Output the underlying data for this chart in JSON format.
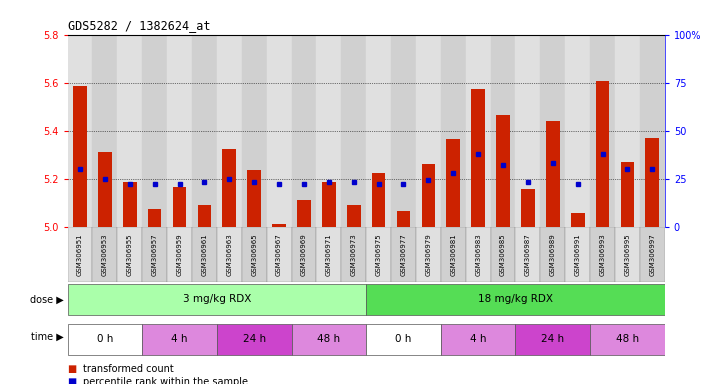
{
  "title": "GDS5282 / 1382624_at",
  "samples": [
    "GSM306951",
    "GSM306953",
    "GSM306955",
    "GSM306957",
    "GSM306959",
    "GSM306961",
    "GSM306963",
    "GSM306965",
    "GSM306967",
    "GSM306969",
    "GSM306971",
    "GSM306973",
    "GSM306975",
    "GSM306977",
    "GSM306979",
    "GSM306981",
    "GSM306983",
    "GSM306985",
    "GSM306987",
    "GSM306989",
    "GSM306991",
    "GSM306993",
    "GSM306995",
    "GSM306997"
  ],
  "transformed_count": [
    5.585,
    5.31,
    5.185,
    5.075,
    5.165,
    5.09,
    5.325,
    5.235,
    5.01,
    5.11,
    5.185,
    5.09,
    5.225,
    5.065,
    5.26,
    5.365,
    5.575,
    5.465,
    5.155,
    5.44,
    5.055,
    5.605,
    5.27,
    5.37
  ],
  "percentile_rank": [
    30,
    25,
    22,
    22,
    22,
    23,
    25,
    23,
    22,
    22,
    23,
    23,
    22,
    22,
    24,
    28,
    38,
    32,
    23,
    33,
    22,
    38,
    30,
    30
  ],
  "y_min": 5.0,
  "y_max": 5.8,
  "y_ticks": [
    5.0,
    5.2,
    5.4,
    5.6,
    5.8
  ],
  "right_y_ticks": [
    0,
    25,
    50,
    75,
    100
  ],
  "bar_color": "#cc2200",
  "dot_color": "#0000cc",
  "dose_groups": [
    {
      "label": "3 mg/kg RDX",
      "start": 0,
      "end": 12,
      "color": "#aaffaa"
    },
    {
      "label": "18 mg/kg RDX",
      "start": 12,
      "end": 24,
      "color": "#55dd55"
    }
  ],
  "time_groups": [
    {
      "label": "0 h",
      "start": 0,
      "end": 3,
      "color": "#ffffff"
    },
    {
      "label": "4 h",
      "start": 3,
      "end": 6,
      "color": "#dd88dd"
    },
    {
      "label": "24 h",
      "start": 6,
      "end": 9,
      "color": "#cc44cc"
    },
    {
      "label": "48 h",
      "start": 9,
      "end": 12,
      "color": "#dd88dd"
    },
    {
      "label": "0 h",
      "start": 12,
      "end": 15,
      "color": "#ffffff"
    },
    {
      "label": "4 h",
      "start": 15,
      "end": 18,
      "color": "#dd88dd"
    },
    {
      "label": "24 h",
      "start": 18,
      "end": 21,
      "color": "#cc44cc"
    },
    {
      "label": "48 h",
      "start": 21,
      "end": 24,
      "color": "#dd88dd"
    }
  ],
  "col_colors": [
    "#e0e0e0",
    "#d0d0d0"
  ],
  "bg_color": "#ffffff",
  "legend": [
    {
      "label": "transformed count",
      "color": "#cc2200"
    },
    {
      "label": "percentile rank within the sample",
      "color": "#0000cc"
    }
  ]
}
